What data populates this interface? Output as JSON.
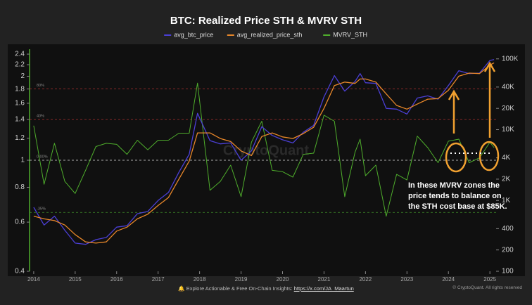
{
  "chart_data": {
    "type": "line",
    "title": "BTC: Realized Price STH & MVRV STH",
    "legend": "top",
    "x": [
      2014.0,
      2014.25,
      2014.5,
      2014.75,
      2015.0,
      2015.25,
      2015.5,
      2015.75,
      2016.0,
      2016.25,
      2016.5,
      2016.75,
      2017.0,
      2017.25,
      2017.5,
      2017.75,
      2017.95,
      2018.25,
      2018.5,
      2018.75,
      2019.0,
      2019.25,
      2019.5,
      2019.75,
      2020.0,
      2020.25,
      2020.5,
      2020.75,
      2021.0,
      2021.25,
      2021.5,
      2021.75,
      2021.87,
      2022.0,
      2022.25,
      2022.5,
      2022.75,
      2023.0,
      2023.25,
      2023.5,
      2023.75,
      2024.0,
      2024.25,
      2024.5,
      2024.75,
      2025.0,
      2025.1
    ],
    "series": [
      {
        "name": "avg_btc_price",
        "color": "#4b3fd6",
        "axis": "y2",
        "values": [
          800,
          450,
          600,
          380,
          250,
          240,
          280,
          300,
          420,
          440,
          650,
          700,
          1000,
          1300,
          2500,
          4500,
          17000,
          7000,
          6300,
          6500,
          3700,
          5000,
          11000,
          8300,
          7200,
          6500,
          9200,
          11500,
          29000,
          58000,
          35000,
          48000,
          62000,
          46000,
          45000,
          20000,
          19500,
          16600,
          28000,
          30000,
          27000,
          42000,
          68000,
          62000,
          63000,
          95000,
          98000
        ]
      },
      {
        "name": "avg_realized_price_sth",
        "color": "#e8872a",
        "axis": "y2",
        "values": [
          600,
          550,
          520,
          450,
          330,
          260,
          250,
          260,
          370,
          420,
          550,
          640,
          850,
          1100,
          2000,
          3600,
          9000,
          9000,
          7500,
          6800,
          5000,
          4300,
          8000,
          9000,
          7900,
          7500,
          8800,
          10800,
          20000,
          42000,
          47000,
          45000,
          52000,
          52000,
          47000,
          32000,
          22000,
          19500,
          23000,
          27000,
          27500,
          36000,
          57000,
          63000,
          62000,
          82000,
          88000
        ]
      },
      {
        "name": "MVRV_STH",
        "color": "#4fae2c",
        "values": [
          1.33,
          0.82,
          1.15,
          0.84,
          0.76,
          0.92,
          1.12,
          1.15,
          1.14,
          1.05,
          1.18,
          1.09,
          1.18,
          1.18,
          1.25,
          1.25,
          1.89,
          0.78,
          0.84,
          0.96,
          0.74,
          1.16,
          1.38,
          0.92,
          0.91,
          0.87,
          1.05,
          1.06,
          1.45,
          1.38,
          0.74,
          1.07,
          1.19,
          0.88,
          0.96,
          0.63,
          0.89,
          0.85,
          1.22,
          1.11,
          0.98,
          1.17,
          1.19,
          0.98,
          1.02,
          1.16,
          1.11
        ]
      }
    ],
    "xlim": [
      2013.9,
      2025.15
    ],
    "xticks": [
      2014,
      2015,
      2016,
      2017,
      2018,
      2019,
      2020,
      2021,
      2022,
      2023,
      2024,
      2025
    ],
    "ylim": [
      0.4,
      2.5
    ],
    "yticks": [
      0.4,
      0.6,
      0.8,
      1,
      1.2,
      1.4,
      1.6,
      1.8,
      2,
      2.2,
      2.4
    ],
    "log_scale": true,
    "y2lim": [
      100,
      137000
    ],
    "y2ticks": [
      100,
      200,
      400,
      {
        "value": 1000,
        "label": "1K"
      },
      {
        "value": 2000,
        "label": "2K"
      },
      {
        "value": 4000,
        "label": "4K"
      },
      {
        "value": 10000,
        "label": "10K"
      },
      {
        "value": 20000,
        "label": "20K"
      },
      {
        "value": 40000,
        "label": "40K"
      },
      {
        "value": 100000,
        "label": "100K"
      }
    ],
    "y2_log_scale": true,
    "reference_lines": [
      {
        "value": 1.8,
        "label": "80%",
        "color": "#b03030"
      },
      {
        "value": 1.4,
        "label": "40%",
        "color": "#b03030"
      },
      {
        "value": 1,
        "label": "0.00%",
        "color": "#dddddd"
      },
      {
        "value": 0.65,
        "label": "-35%",
        "color": "#3f8f2a"
      }
    ],
    "annotation": "In these MVRV zones the price tends to balance on the STH cost base at $85K.",
    "watermark": "CryptoQuant",
    "footer": {
      "text": "Explore Actionable & Free On-Chain Insights:",
      "link": "https://x.com/JA_Maartun",
      "copyright": "© CryptoQuant. All rights reserved"
    }
  }
}
